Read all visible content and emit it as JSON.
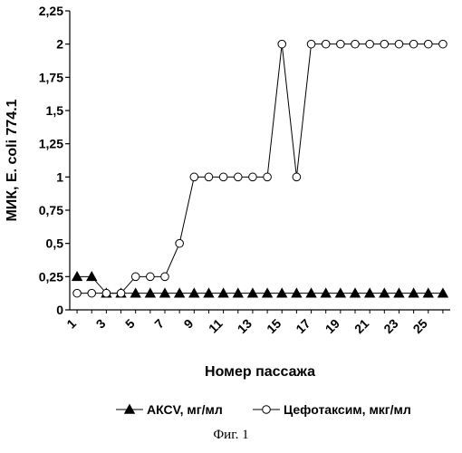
{
  "chart_data": {
    "type": "line",
    "x": [
      1,
      2,
      3,
      4,
      5,
      6,
      7,
      8,
      9,
      10,
      11,
      12,
      13,
      14,
      15,
      16,
      17,
      18,
      19,
      20,
      21,
      22,
      23,
      24,
      25,
      26
    ],
    "x_tick_labels": [
      "1",
      "3",
      "5",
      "7",
      "9",
      "11",
      "13",
      "15",
      "17",
      "19",
      "21",
      "23",
      "25"
    ],
    "y_tick_labels": [
      "0",
      "0,25",
      "0,5",
      "0,75",
      "1",
      "1,25",
      "1,5",
      "1,75",
      "2",
      "2,25"
    ],
    "xlabel": "Номер пассажа",
    "ylabel": "МИК, E. coli 774.1",
    "xlim": [
      0.5,
      26.5
    ],
    "ylim": [
      0,
      2.25
    ],
    "grid": false,
    "legend_position": "bottom",
    "series": [
      {
        "name": "АКСV, мг/мл",
        "marker": "filled-triangle",
        "color": "#000000",
        "values": [
          0.25,
          0.25,
          0.125,
          0.125,
          0.125,
          0.125,
          0.125,
          0.125,
          0.125,
          0.125,
          0.125,
          0.125,
          0.125,
          0.125,
          0.125,
          0.125,
          0.125,
          0.125,
          0.125,
          0.125,
          0.125,
          0.125,
          0.125,
          0.125,
          0.125,
          0.125
        ]
      },
      {
        "name": "Цефотаксим, мкг/мл",
        "marker": "open-circle",
        "color": "#000000",
        "values": [
          0.125,
          0.125,
          0.125,
          0.125,
          0.25,
          0.25,
          0.25,
          0.5,
          1,
          1,
          1,
          1,
          1,
          1,
          2,
          1,
          2,
          2,
          2,
          2,
          2,
          2,
          2,
          2,
          2,
          2
        ]
      }
    ]
  },
  "caption": "Фиг. 1"
}
